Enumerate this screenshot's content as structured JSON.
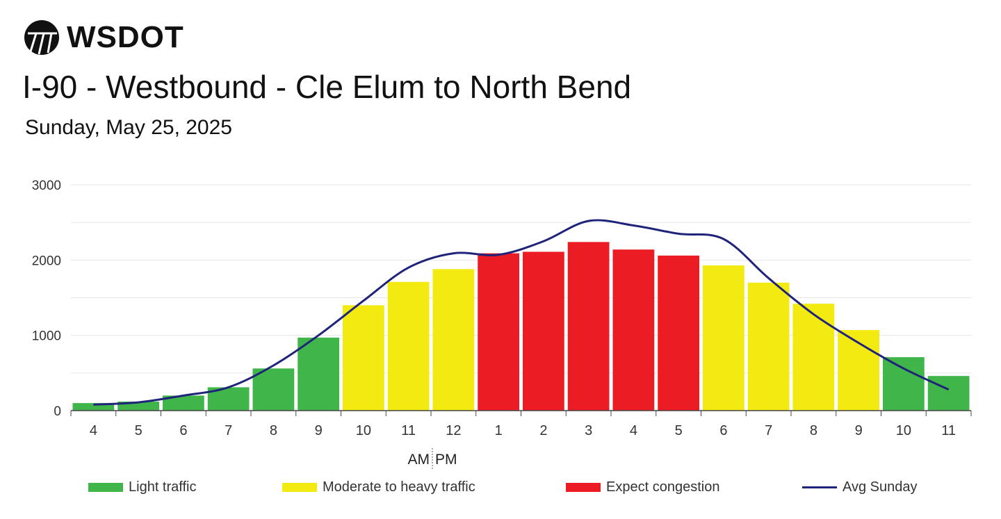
{
  "brand": {
    "name": "WSDOT",
    "icon": "wsdot-logo-icon"
  },
  "header": {
    "title": "I-90 - Westbound - Cle Elum to North Bend",
    "subtitle": "Sunday, May 25, 2025"
  },
  "colors": {
    "light": "#3fb54a",
    "moderate": "#f2ea11",
    "congestion": "#ec1c24",
    "avg_line": "#1f237a",
    "grid": "#e6e6e6",
    "axis": "#444444"
  },
  "legend": [
    {
      "label": "Light traffic",
      "key": "light"
    },
    {
      "label": "Moderate to heavy traffic",
      "key": "moderate"
    },
    {
      "label": "Expect congestion",
      "key": "congestion"
    },
    {
      "label": "Avg Sunday",
      "key": "avg_line"
    }
  ],
  "chart_data": {
    "type": "bar",
    "categories": [
      "4",
      "5",
      "6",
      "7",
      "8",
      "9",
      "10",
      "11",
      "12",
      "1",
      "2",
      "3",
      "4",
      "5",
      "6",
      "7",
      "8",
      "9",
      "10",
      "11"
    ],
    "series": [
      {
        "values": [
          100,
          120,
          200,
          310,
          560,
          970,
          1400,
          1710,
          1880,
          2090,
          2110,
          2240,
          2140,
          2060,
          1930,
          1700,
          1420,
          1070,
          710,
          460
        ],
        "levels": [
          "light",
          "light",
          "light",
          "light",
          "light",
          "light",
          "moderate",
          "moderate",
          "moderate",
          "congestion",
          "congestion",
          "congestion",
          "congestion",
          "congestion",
          "moderate",
          "moderate",
          "moderate",
          "moderate",
          "light",
          "light"
        ]
      },
      {
        "name": "Avg Sunday",
        "type": "line",
        "values": [
          80,
          110,
          200,
          310,
          600,
          1000,
          1460,
          1900,
          2090,
          2070,
          2250,
          2520,
          2460,
          2350,
          2280,
          1760,
          1280,
          900,
          560,
          280
        ]
      }
    ],
    "ylim": [
      0,
      3000
    ],
    "yticks": [
      0,
      1000,
      2000,
      3000
    ],
    "ampm_label": {
      "am": "AM",
      "pm": "PM"
    },
    "grid": true
  }
}
